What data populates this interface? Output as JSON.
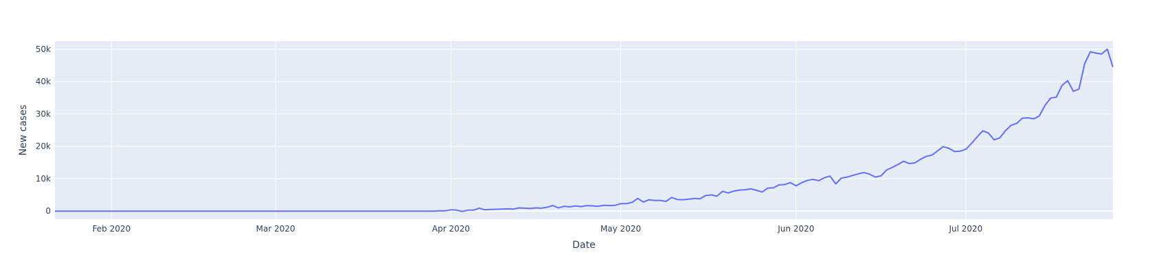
{
  "chart_data": {
    "type": "line",
    "title": "",
    "xlabel": "Date",
    "ylabel": "New cases",
    "xlim": [
      "2020-01-22",
      "2020-07-26"
    ],
    "ylim": [
      -2500,
      52500
    ],
    "grid": true,
    "legend": "none",
    "colors": {
      "line": "#636efa",
      "plot_bg": "#e5ecf6",
      "grid": "#ffffff",
      "text": "#2a3f5f"
    },
    "x_ticks": [
      {
        "date": "2020-02-01",
        "label": "Feb 2020"
      },
      {
        "date": "2020-03-01",
        "label": "Mar 2020"
      },
      {
        "date": "2020-04-01",
        "label": "Apr 2020"
      },
      {
        "date": "2020-05-01",
        "label": "May 2020"
      },
      {
        "date": "2020-06-01",
        "label": "Jun 2020"
      },
      {
        "date": "2020-07-01",
        "label": "Jul 2020"
      }
    ],
    "y_ticks": [
      {
        "value": 0,
        "label": "0"
      },
      {
        "value": 10000,
        "label": "10k"
      },
      {
        "value": 20000,
        "label": "20k"
      },
      {
        "value": 30000,
        "label": "30k"
      },
      {
        "value": 40000,
        "label": "40k"
      },
      {
        "value": 50000,
        "label": "50k"
      }
    ],
    "series": [
      {
        "points": [
          [
            "2020-01-22",
            0
          ],
          [
            "2020-02-15",
            0
          ],
          [
            "2020-03-10",
            0
          ],
          [
            "2020-03-29",
            0
          ],
          [
            "2020-03-30",
            100
          ],
          [
            "2020-03-31",
            100
          ],
          [
            "2020-04-01",
            400
          ],
          [
            "2020-04-02",
            300
          ],
          [
            "2020-04-03",
            -100
          ],
          [
            "2020-04-04",
            300
          ],
          [
            "2020-04-05",
            300
          ],
          [
            "2020-04-06",
            900
          ],
          [
            "2020-04-07",
            400
          ],
          [
            "2020-04-08",
            500
          ],
          [
            "2020-04-10",
            600
          ],
          [
            "2020-04-11",
            700
          ],
          [
            "2020-04-12",
            600
          ],
          [
            "2020-04-13",
            1000
          ],
          [
            "2020-04-14",
            900
          ],
          [
            "2020-04-15",
            800
          ],
          [
            "2020-04-16",
            1000
          ],
          [
            "2020-04-17",
            900
          ],
          [
            "2020-04-18",
            1200
          ],
          [
            "2020-04-19",
            1700
          ],
          [
            "2020-04-20",
            1000
          ],
          [
            "2020-04-21",
            1500
          ],
          [
            "2020-04-22",
            1300
          ],
          [
            "2020-04-23",
            1600
          ],
          [
            "2020-04-24",
            1400
          ],
          [
            "2020-04-25",
            1700
          ],
          [
            "2020-04-26",
            1600
          ],
          [
            "2020-04-27",
            1500
          ],
          [
            "2020-04-28",
            1800
          ],
          [
            "2020-04-29",
            1700
          ],
          [
            "2020-04-30",
            1800
          ],
          [
            "2020-05-01",
            2300
          ],
          [
            "2020-05-02",
            2300
          ],
          [
            "2020-05-03",
            2700
          ],
          [
            "2020-05-04",
            3900
          ],
          [
            "2020-05-05",
            2800
          ],
          [
            "2020-05-06",
            3500
          ],
          [
            "2020-05-07",
            3300
          ],
          [
            "2020-05-08",
            3300
          ],
          [
            "2020-05-09",
            3000
          ],
          [
            "2020-05-10",
            4200
          ],
          [
            "2020-05-11",
            3600
          ],
          [
            "2020-05-12",
            3500
          ],
          [
            "2020-05-13",
            3700
          ],
          [
            "2020-05-14",
            3900
          ],
          [
            "2020-05-15",
            3800
          ],
          [
            "2020-05-16",
            4800
          ],
          [
            "2020-05-17",
            5000
          ],
          [
            "2020-05-18",
            4600
          ],
          [
            "2020-05-19",
            6100
          ],
          [
            "2020-05-20",
            5600
          ],
          [
            "2020-05-21",
            6200
          ],
          [
            "2020-05-22",
            6500
          ],
          [
            "2020-05-23",
            6600
          ],
          [
            "2020-05-24",
            6900
          ],
          [
            "2020-05-25",
            6400
          ],
          [
            "2020-05-26",
            5900
          ],
          [
            "2020-05-27",
            7100
          ],
          [
            "2020-05-28",
            7200
          ],
          [
            "2020-05-29",
            8100
          ],
          [
            "2020-05-30",
            8200
          ],
          [
            "2020-05-31",
            8800
          ],
          [
            "2020-06-01",
            7800
          ],
          [
            "2020-06-02",
            8800
          ],
          [
            "2020-06-03",
            9500
          ],
          [
            "2020-06-04",
            9800
          ],
          [
            "2020-06-05",
            9400
          ],
          [
            "2020-06-06",
            10300
          ],
          [
            "2020-06-07",
            10800
          ],
          [
            "2020-06-08",
            8400
          ],
          [
            "2020-06-09",
            10200
          ],
          [
            "2020-06-10",
            10500
          ],
          [
            "2020-06-11",
            11000
          ],
          [
            "2020-06-12",
            11500
          ],
          [
            "2020-06-13",
            11900
          ],
          [
            "2020-06-14",
            11400
          ],
          [
            "2020-06-15",
            10500
          ],
          [
            "2020-06-16",
            10900
          ],
          [
            "2020-06-17",
            12700
          ],
          [
            "2020-06-18",
            13500
          ],
          [
            "2020-06-19",
            14400
          ],
          [
            "2020-06-20",
            15400
          ],
          [
            "2020-06-21",
            14700
          ],
          [
            "2020-06-22",
            14900
          ],
          [
            "2020-06-23",
            16000
          ],
          [
            "2020-06-24",
            16900
          ],
          [
            "2020-06-25",
            17300
          ],
          [
            "2020-06-26",
            18600
          ],
          [
            "2020-06-27",
            19900
          ],
          [
            "2020-06-28",
            19400
          ],
          [
            "2020-06-29",
            18400
          ],
          [
            "2020-06-30",
            18500
          ],
          [
            "2020-07-01",
            19100
          ],
          [
            "2020-07-02",
            20900
          ],
          [
            "2020-07-03",
            22900
          ],
          [
            "2020-07-04",
            24800
          ],
          [
            "2020-07-05",
            24100
          ],
          [
            "2020-07-06",
            22000
          ],
          [
            "2020-07-07",
            22600
          ],
          [
            "2020-07-08",
            24800
          ],
          [
            "2020-07-09",
            26500
          ],
          [
            "2020-07-10",
            27100
          ],
          [
            "2020-07-11",
            28700
          ],
          [
            "2020-07-12",
            28800
          ],
          [
            "2020-07-13",
            28500
          ],
          [
            "2020-07-14",
            29400
          ],
          [
            "2020-07-15",
            32700
          ],
          [
            "2020-07-16",
            34900
          ],
          [
            "2020-07-17",
            35200
          ],
          [
            "2020-07-18",
            38800
          ],
          [
            "2020-07-19",
            40300
          ],
          [
            "2020-07-20",
            37000
          ],
          [
            "2020-07-21",
            37700
          ],
          [
            "2020-07-22",
            45500
          ],
          [
            "2020-07-23",
            49200
          ],
          [
            "2020-07-24",
            48800
          ],
          [
            "2020-07-25",
            48500
          ],
          [
            "2020-07-26",
            50000
          ],
          [
            "2020-07-27",
            44500
          ]
        ]
      }
    ]
  }
}
